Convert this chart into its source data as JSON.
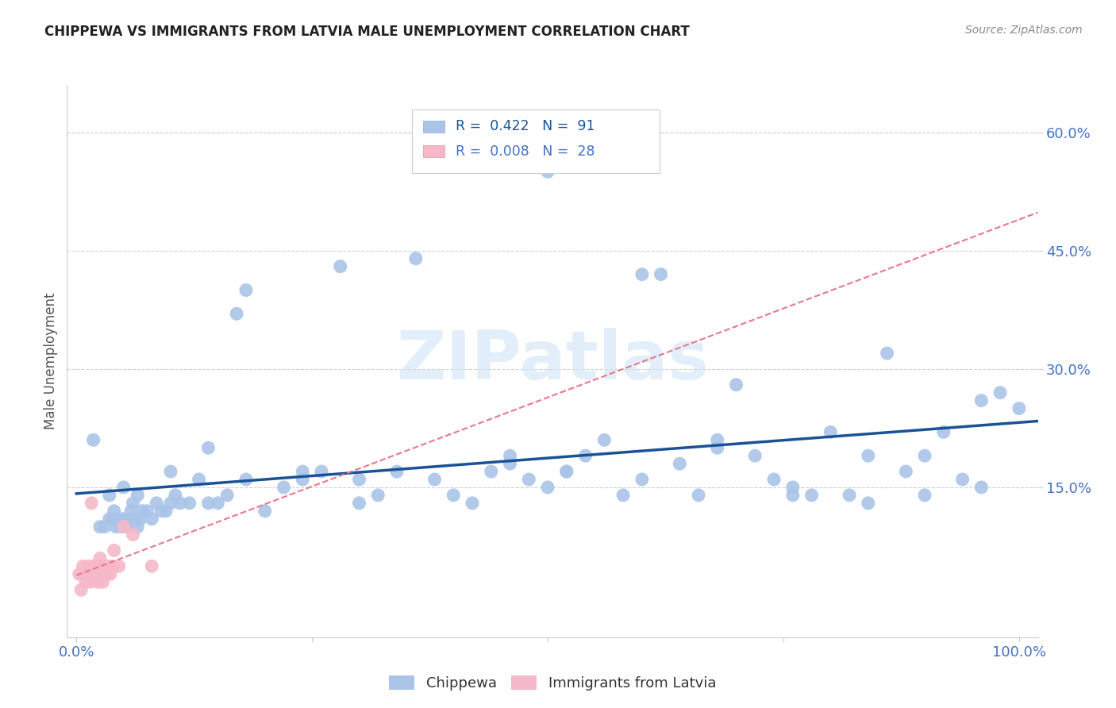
{
  "title": "CHIPPEWA VS IMMIGRANTS FROM LATVIA MALE UNEMPLOYMENT CORRELATION CHART",
  "source": "Source: ZipAtlas.com",
  "ylabel": "Male Unemployment",
  "xlim": [
    -0.01,
    1.02
  ],
  "ylim": [
    -0.04,
    0.66
  ],
  "xtick_positions": [
    0.0,
    0.25,
    0.5,
    0.75,
    1.0
  ],
  "xtick_labels": [
    "0.0%",
    "",
    "",
    "",
    "100.0%"
  ],
  "ytick_values": [
    0.15,
    0.3,
    0.45,
    0.6
  ],
  "ytick_labels": [
    "15.0%",
    "30.0%",
    "45.0%",
    "60.0%"
  ],
  "background_color": "#ffffff",
  "grid_color": "#d0d0d0",
  "chippewa_color": "#aac4e8",
  "chippewa_edge_color": "#aac4e8",
  "chippewa_line_color": "#1a5296",
  "latvia_color": "#f5b8c8",
  "latvia_edge_color": "#f5b8c8",
  "latvia_line_color": "#e8788a",
  "watermark": "ZIPatlas",
  "legend_R1": "R =  0.422",
  "legend_N1": "N =  91",
  "legend_R2": "R =  0.008",
  "legend_N2": "N =  28",
  "chippewa_x": [
    0.018,
    0.025,
    0.03,
    0.035,
    0.038,
    0.04,
    0.042,
    0.045,
    0.048,
    0.05,
    0.052,
    0.055,
    0.058,
    0.06,
    0.063,
    0.065,
    0.068,
    0.07,
    0.075,
    0.08,
    0.085,
    0.09,
    0.095,
    0.1,
    0.105,
    0.11,
    0.12,
    0.13,
    0.14,
    0.15,
    0.16,
    0.17,
    0.18,
    0.2,
    0.22,
    0.24,
    0.26,
    0.28,
    0.3,
    0.32,
    0.34,
    0.36,
    0.4,
    0.42,
    0.44,
    0.46,
    0.48,
    0.5,
    0.52,
    0.54,
    0.56,
    0.58,
    0.6,
    0.62,
    0.64,
    0.66,
    0.68,
    0.7,
    0.72,
    0.74,
    0.76,
    0.78,
    0.8,
    0.82,
    0.84,
    0.86,
    0.88,
    0.9,
    0.92,
    0.94,
    0.96,
    0.98,
    1.0,
    0.035,
    0.05,
    0.065,
    0.1,
    0.14,
    0.18,
    0.24,
    0.3,
    0.38,
    0.46,
    0.52,
    0.6,
    0.68,
    0.76,
    0.84,
    0.9,
    0.96,
    0.5
  ],
  "chippewa_y": [
    0.21,
    0.1,
    0.1,
    0.11,
    0.11,
    0.12,
    0.1,
    0.11,
    0.1,
    0.11,
    0.1,
    0.11,
    0.12,
    0.13,
    0.11,
    0.1,
    0.11,
    0.12,
    0.12,
    0.11,
    0.13,
    0.12,
    0.12,
    0.13,
    0.14,
    0.13,
    0.13,
    0.16,
    0.2,
    0.13,
    0.14,
    0.37,
    0.4,
    0.12,
    0.15,
    0.16,
    0.17,
    0.43,
    0.13,
    0.14,
    0.17,
    0.44,
    0.14,
    0.13,
    0.17,
    0.18,
    0.16,
    0.15,
    0.17,
    0.19,
    0.21,
    0.14,
    0.42,
    0.42,
    0.18,
    0.14,
    0.21,
    0.28,
    0.19,
    0.16,
    0.15,
    0.14,
    0.22,
    0.14,
    0.19,
    0.32,
    0.17,
    0.19,
    0.22,
    0.16,
    0.26,
    0.27,
    0.25,
    0.14,
    0.15,
    0.14,
    0.17,
    0.13,
    0.16,
    0.17,
    0.16,
    0.16,
    0.19,
    0.17,
    0.16,
    0.2,
    0.14,
    0.13,
    0.14,
    0.15,
    0.55
  ],
  "latvia_x": [
    0.003,
    0.005,
    0.007,
    0.008,
    0.01,
    0.012,
    0.013,
    0.015,
    0.016,
    0.018,
    0.019,
    0.02,
    0.022,
    0.023,
    0.024,
    0.025,
    0.026,
    0.028,
    0.03,
    0.032,
    0.034,
    0.036,
    0.038,
    0.04,
    0.045,
    0.05,
    0.06,
    0.08
  ],
  "latvia_y": [
    0.04,
    0.02,
    0.05,
    0.04,
    0.03,
    0.04,
    0.05,
    0.03,
    0.13,
    0.05,
    0.04,
    0.05,
    0.04,
    0.03,
    0.05,
    0.06,
    0.04,
    0.03,
    0.05,
    0.04,
    0.05,
    0.04,
    0.05,
    0.07,
    0.05,
    0.1,
    0.09,
    0.05
  ]
}
